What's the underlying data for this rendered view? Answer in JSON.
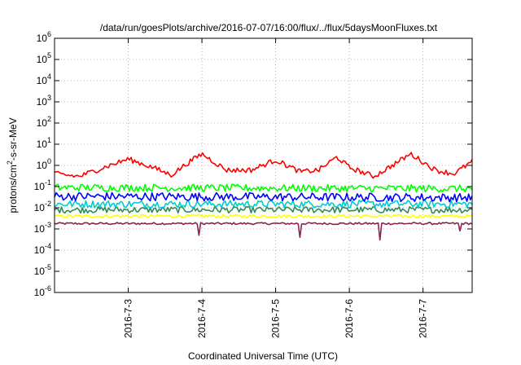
{
  "chart_data": {
    "type": "line",
    "title": "/data/run/goesPlots/archive/2016-07-07/16:00/flux/../flux/5daysMoonFluxes.txt",
    "xlabel": "Coordinated Universal Time (UTC)",
    "ylabel_parts": {
      "pre": "protons/cm",
      "sup": "2",
      "post": "-s-sr-MeV"
    },
    "xlim": [
      "2016-07-02 00:00",
      "2016-07-07 16:00"
    ],
    "ylim": [
      1e-06,
      1000000.0
    ],
    "yscale": "log",
    "grid": true,
    "legend": "none",
    "x_ticks": [
      {
        "date": "2016-07-03",
        "label": "2016-7-3"
      },
      {
        "date": "2016-07-04",
        "label": "2016-7-4"
      },
      {
        "date": "2016-07-05",
        "label": "2016-7-5"
      },
      {
        "date": "2016-07-06",
        "label": "2016-7-6"
      },
      {
        "date": "2016-07-07",
        "label": "2016-7-7"
      }
    ],
    "y_ticks": [
      {
        "value": 1e-06,
        "mantissa": "10",
        "exp": "-6"
      },
      {
        "value": 1e-05,
        "mantissa": "10",
        "exp": "-5"
      },
      {
        "value": 0.0001,
        "mantissa": "10",
        "exp": "-4"
      },
      {
        "value": 0.001,
        "mantissa": "10",
        "exp": "-3"
      },
      {
        "value": 0.01,
        "mantissa": "10",
        "exp": "-2"
      },
      {
        "value": 0.1,
        "mantissa": "10",
        "exp": "-1"
      },
      {
        "value": 1.0,
        "mantissa": "10",
        "exp": "0"
      },
      {
        "value": 10.0,
        "mantissa": "10",
        "exp": "1"
      },
      {
        "value": 100.0,
        "mantissa": "10",
        "exp": "2"
      },
      {
        "value": 1000.0,
        "mantissa": "10",
        "exp": "3"
      },
      {
        "value": 10000.0,
        "mantissa": "10",
        "exp": "4"
      },
      {
        "value": 100000.0,
        "mantissa": "10",
        "exp": "5"
      },
      {
        "value": 1000000.0,
        "mantissa": "10",
        "exp": "6"
      }
    ],
    "series": [
      {
        "color": "#ff0000",
        "anchors_x": [
          "2016-07-02 00:00",
          "2016-07-02 08:00",
          "2016-07-02 16:00",
          "2016-07-03 00:00",
          "2016-07-03 08:00",
          "2016-07-03 14:00",
          "2016-07-03 20:00",
          "2016-07-04 00:00",
          "2016-07-04 08:00",
          "2016-07-04 16:00",
          "2016-07-05 00:00",
          "2016-07-05 08:00",
          "2016-07-05 14:00",
          "2016-07-05 20:00",
          "2016-07-06 00:00",
          "2016-07-06 08:00",
          "2016-07-06 14:00",
          "2016-07-06 20:00",
          "2016-07-07 04:00",
          "2016-07-07 10:00",
          "2016-07-07 16:00"
        ],
        "anchors_y": [
          0.4,
          0.3,
          0.8,
          2.0,
          0.8,
          0.35,
          1.5,
          3.5,
          0.6,
          0.6,
          1.8,
          0.5,
          0.6,
          2.5,
          0.8,
          0.3,
          1.0,
          3.5,
          0.6,
          0.4,
          1.5
        ],
        "noise": 0.25,
        "dips": []
      },
      {
        "color": "#00ff00",
        "anchors_x": [
          "2016-07-02 00:00",
          "2016-07-07 16:00"
        ],
        "anchors_y": [
          0.09,
          0.08
        ],
        "noise": 0.35,
        "dips": []
      },
      {
        "color": "#0000ff",
        "anchors_x": [
          "2016-07-02 00:00",
          "2016-07-07 16:00"
        ],
        "anchors_y": [
          0.035,
          0.03
        ],
        "noise": 0.4,
        "dips": []
      },
      {
        "color": "#00cccc",
        "anchors_x": [
          "2016-07-02 00:00",
          "2016-07-07 16:00"
        ],
        "anchors_y": [
          0.015,
          0.015
        ],
        "noise": 0.35,
        "dips": []
      },
      {
        "color": "#2e8b57",
        "anchors_x": [
          "2016-07-02 00:00",
          "2016-07-07 16:00"
        ],
        "anchors_y": [
          0.008,
          0.008
        ],
        "noise": 0.3,
        "dips": []
      },
      {
        "color": "#ffff00",
        "anchors_x": [
          "2016-07-02 00:00",
          "2016-07-07 16:00"
        ],
        "anchors_y": [
          0.004,
          0.004
        ],
        "noise": 0.15,
        "dips": []
      },
      {
        "color": "#8b2252",
        "anchors_x": [
          "2016-07-02 00:00",
          "2016-07-07 16:00"
        ],
        "anchors_y": [
          0.0018,
          0.0018
        ],
        "noise": 0.1,
        "dips": [
          [
            "2016-07-03 23:00",
            0.0005
          ],
          [
            "2016-07-05 08:00",
            0.0004
          ],
          [
            "2016-07-06 10:00",
            0.0003
          ],
          [
            "2016-07-07 12:00",
            0.0008
          ]
        ]
      }
    ]
  }
}
